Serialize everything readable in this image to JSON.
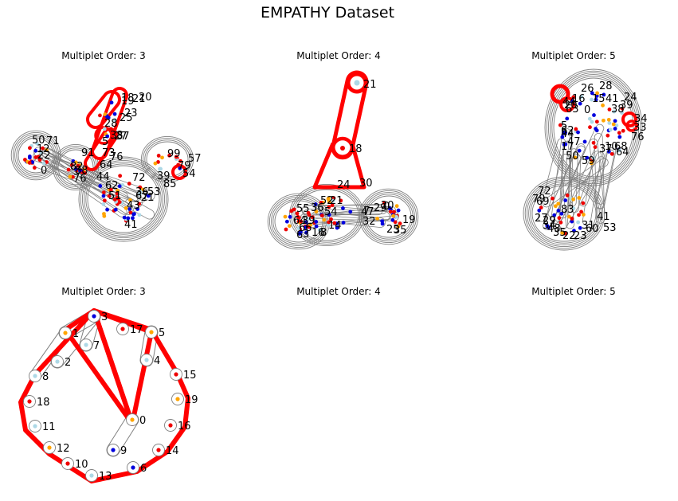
{
  "figure": {
    "title": "EMPATHY Dataset",
    "panels": [
      {
        "title": "Multiplet Order: 3",
        "kind": "dense"
      },
      {
        "title": "Multiplet Order: 4",
        "kind": "dense"
      },
      {
        "title": "Multiplet Order: 5",
        "kind": "dense"
      },
      {
        "title": "Multiplet Order: 3",
        "kind": "ring"
      },
      {
        "title": "Multiplet Order: 4",
        "kind": "empty"
      },
      {
        "title": "Multiplet Order: 5",
        "kind": "empty"
      }
    ]
  },
  "colors": {
    "red": "#ee0000",
    "blue": "#0000dd",
    "orange": "#ffa500",
    "lightblue": "#add8e6",
    "hull_gray": "#808080",
    "highlight": "#ff0000"
  },
  "ring_graph": {
    "nodes": [
      {
        "id": "3",
        "color": "blue"
      },
      {
        "id": "1",
        "color": "orange"
      },
      {
        "id": "7",
        "color": "lightblue"
      },
      {
        "id": "17",
        "color": "red"
      },
      {
        "id": "5",
        "color": "orange"
      },
      {
        "id": "2",
        "color": "lightblue"
      },
      {
        "id": "4",
        "color": "lightblue"
      },
      {
        "id": "8",
        "color": "lightblue"
      },
      {
        "id": "15",
        "color": "red"
      },
      {
        "id": "18",
        "color": "red"
      },
      {
        "id": "19",
        "color": "orange"
      },
      {
        "id": "11",
        "color": "lightblue"
      },
      {
        "id": "0",
        "color": "orange"
      },
      {
        "id": "16",
        "color": "red"
      },
      {
        "id": "12",
        "color": "orange"
      },
      {
        "id": "9",
        "color": "blue"
      },
      {
        "id": "14",
        "color": "red"
      },
      {
        "id": "10",
        "color": "red"
      },
      {
        "id": "6",
        "color": "blue"
      },
      {
        "id": "13",
        "color": "lightblue"
      }
    ]
  },
  "dense_graphs": [
    {
      "labels": [
        "18",
        "20",
        "19",
        "21",
        "23",
        "25",
        "28",
        "27",
        "38",
        "37",
        "5",
        "73",
        "76",
        "50",
        "71",
        "12",
        "22",
        "91",
        "99",
        "57",
        "82",
        "88",
        "44",
        "64",
        "62",
        "76",
        "39",
        "72",
        "79",
        "85",
        "51",
        "67",
        "43",
        "41",
        "0",
        "21",
        "36",
        "53",
        "54"
      ],
      "highlighted_labels": [
        "18",
        "20",
        "19",
        "23",
        "25",
        "28",
        "38",
        "37",
        "73",
        "79",
        "64"
      ]
    },
    {
      "labels": [
        "21",
        "18",
        "24",
        "30",
        "52",
        "21",
        "55",
        "36",
        "54",
        "39",
        "47",
        "29",
        "32",
        "25",
        "35",
        "16",
        "14",
        "20",
        "0",
        "19",
        "64",
        "66",
        "7",
        "6",
        "8",
        "3"
      ],
      "highlighted_labels": [
        "21",
        "18",
        "24",
        "30"
      ]
    },
    {
      "labels": [
        "26",
        "28",
        "24",
        "16",
        "15",
        "44",
        "41",
        "39",
        "38",
        "20",
        "63",
        "0",
        "5",
        "62",
        "44",
        "47",
        "17",
        "34",
        "33",
        "76",
        "68",
        "64",
        "59",
        "50",
        "72",
        "79",
        "69",
        "83",
        "27",
        "29",
        "34",
        "41",
        "31",
        "60",
        "53",
        "23",
        "22",
        "48",
        "35",
        "10",
        "37"
      ],
      "highlighted_labels": [
        "26",
        "28",
        "34",
        "33",
        "20",
        "63"
      ]
    }
  ]
}
